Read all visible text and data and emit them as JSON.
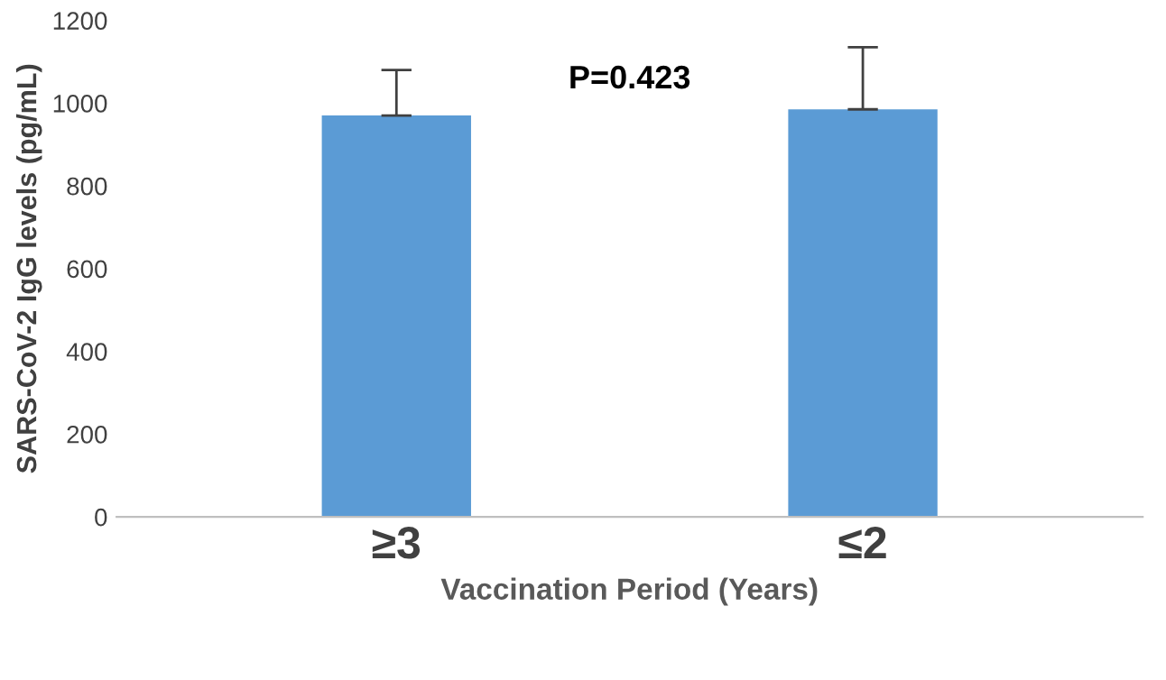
{
  "chart_data": {
    "type": "bar",
    "xlabel": "Vaccination Period (Years)",
    "ylabel": "SARS-CoV-2 IgG levels (pg/mL)",
    "categories": [
      "≥3",
      "≤2"
    ],
    "values": [
      970,
      985
    ],
    "errors": [
      [
        970,
        1080
      ],
      [
        985,
        1135
      ]
    ],
    "color": "#5b9bd5",
    "ylim": [
      0,
      1200
    ],
    "yticks": [
      0,
      200,
      400,
      600,
      800,
      1000,
      1200
    ],
    "grid": false,
    "annotations": [
      "P=0.423"
    ]
  }
}
